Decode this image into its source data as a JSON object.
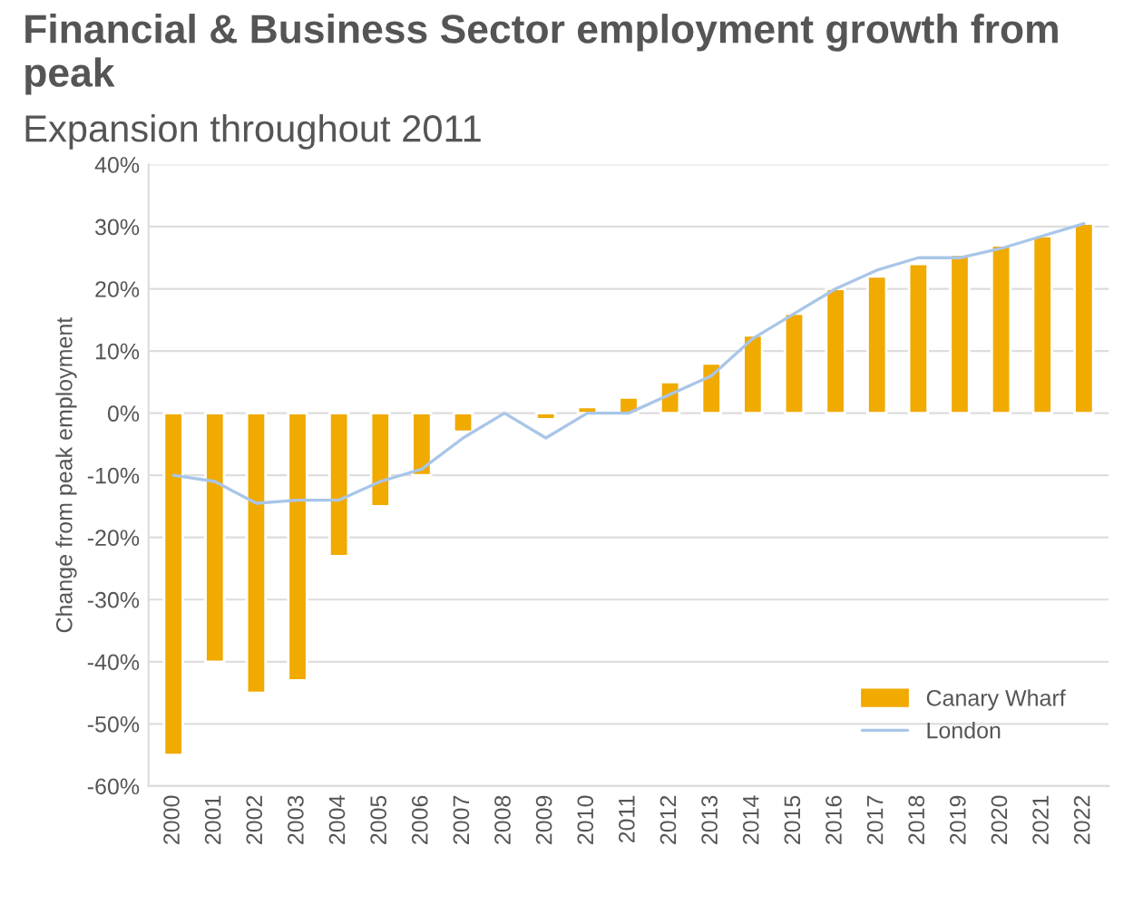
{
  "chart_data": {
    "type": "bar",
    "title": "Financial & Business Sector employment growth from peak",
    "subtitle": "Expansion throughout 2011",
    "ylabel": "Change from peak employment",
    "categories": [
      "2000",
      "2001",
      "2002",
      "2003",
      "2004",
      "2005",
      "2006",
      "2007",
      "2008",
      "2009",
      "2010",
      "2011",
      "2012",
      "2013",
      "2014",
      "2015",
      "2016",
      "2017",
      "2018",
      "2019",
      "2020",
      "2021",
      "2022"
    ],
    "series": [
      {
        "name": "Canary Wharf",
        "color": "#f0aa00",
        "values": [
          -55,
          -40,
          -45,
          -43,
          -23,
          -15,
          -10,
          -3,
          null,
          -1,
          1,
          2.5,
          5,
          8,
          12.5,
          16,
          20,
          22,
          24,
          25.5,
          27,
          28.5,
          30.5
        ]
      },
      {
        "name": "London",
        "type": "line",
        "color": "#a9c6e8",
        "values": [
          -10,
          -11,
          -14.5,
          -14,
          -14,
          -11,
          -9,
          -4,
          0,
          -4,
          0,
          0,
          3,
          6,
          12,
          16,
          20,
          23,
          25,
          25,
          26.5,
          28.5,
          30.5
        ]
      }
    ],
    "ylim": [
      -60,
      40
    ],
    "yticks": [
      {
        "value": -60,
        "label": "-60%"
      },
      {
        "value": -50,
        "label": "-50%"
      },
      {
        "value": -40,
        "label": "-40%"
      },
      {
        "value": -30,
        "label": "-30%"
      },
      {
        "value": -20,
        "label": "-20%"
      },
      {
        "value": -10,
        "label": "-10%"
      },
      {
        "value": 0,
        "label": "0%"
      },
      {
        "value": 10,
        "label": "10%"
      },
      {
        "value": 20,
        "label": "20%"
      },
      {
        "value": 30,
        "label": "30%"
      },
      {
        "value": 40,
        "label": "40%"
      }
    ],
    "grid": "y",
    "legend": "bottom right",
    "line_style": "solid",
    "marker": "none"
  }
}
